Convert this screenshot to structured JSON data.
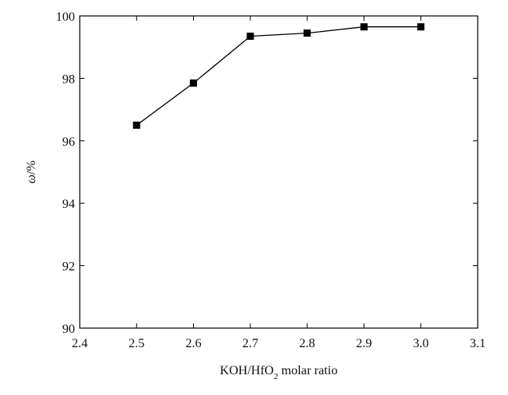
{
  "chart_data": {
    "type": "line",
    "title": "",
    "xlabel": {
      "prefix": "KOH/HfO",
      "subscript": "2",
      "suffix": " molar ratio"
    },
    "ylabel": {
      "symbol": "ω",
      "unit": "/%"
    },
    "xlim": [
      2.4,
      3.1
    ],
    "ylim": [
      90,
      100
    ],
    "xticks": [
      "2.4",
      "2.5",
      "2.6",
      "2.7",
      "2.8",
      "2.9",
      "3.0",
      "3.1"
    ],
    "yticks": [
      "90",
      "92",
      "94",
      "96",
      "98",
      "100"
    ],
    "grid": false,
    "legend": "none",
    "marker": "square",
    "series": [
      {
        "x": [
          2.5,
          2.6,
          2.7,
          2.8,
          2.9,
          3.0
        ],
        "y": [
          96.5,
          97.85,
          99.35,
          99.45,
          99.65,
          99.65
        ]
      }
    ],
    "colors": {
      "line": "#000000",
      "marker": "#000000",
      "axis": "#000000"
    }
  }
}
